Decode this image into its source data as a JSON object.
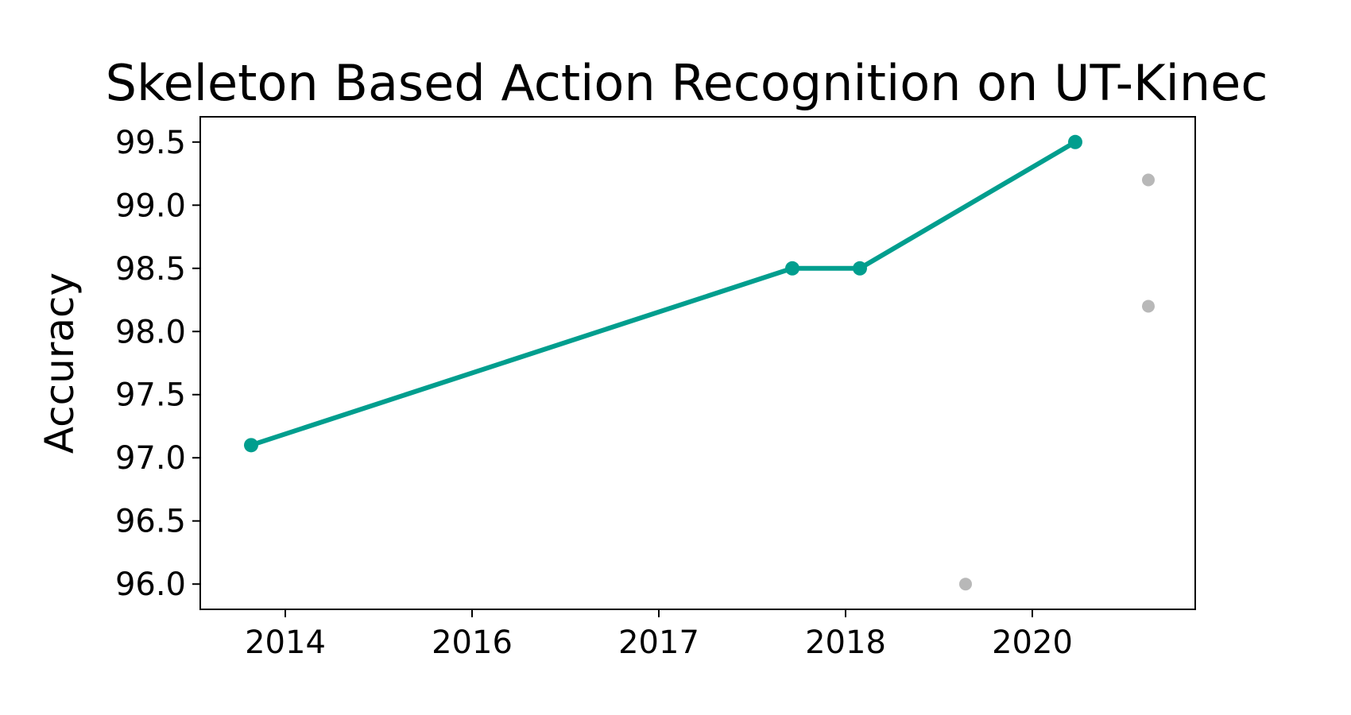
{
  "chart_data": {
    "type": "line",
    "title": "Skeleton Based Action Recognition on UT-Kinec",
    "xlabel": "",
    "ylabel": "Accuracy",
    "x_tick_labels": [
      "2014",
      "2016",
      "2017",
      "2018",
      "2020"
    ],
    "y_ticks": [
      96.0,
      96.5,
      97.0,
      97.5,
      98.0,
      98.5,
      99.0,
      99.5
    ],
    "y_tick_labels": [
      "96.0",
      "96.5",
      "97.0",
      "97.5",
      "98.0",
      "98.5",
      "99.0",
      "99.5"
    ],
    "ylim": [
      95.8,
      99.7
    ],
    "grid": false,
    "series": [
      {
        "color": "#009e8e",
        "style": "line-with-markers",
        "points": [
          {
            "x": "2013-10",
            "y": 97.1
          },
          {
            "x": "2017-09",
            "y": 98.5
          },
          {
            "x": "2018-02",
            "y": 98.5
          },
          {
            "x": "2020-03",
            "y": 99.5
          }
        ]
      },
      {
        "color": "#b8b8b8",
        "style": "markers-only",
        "points": [
          {
            "x": "2019-08",
            "y": 96.0
          },
          {
            "x": "2020-08",
            "y": 99.2
          },
          {
            "x": "2020-08",
            "y": 98.2
          }
        ]
      }
    ]
  }
}
